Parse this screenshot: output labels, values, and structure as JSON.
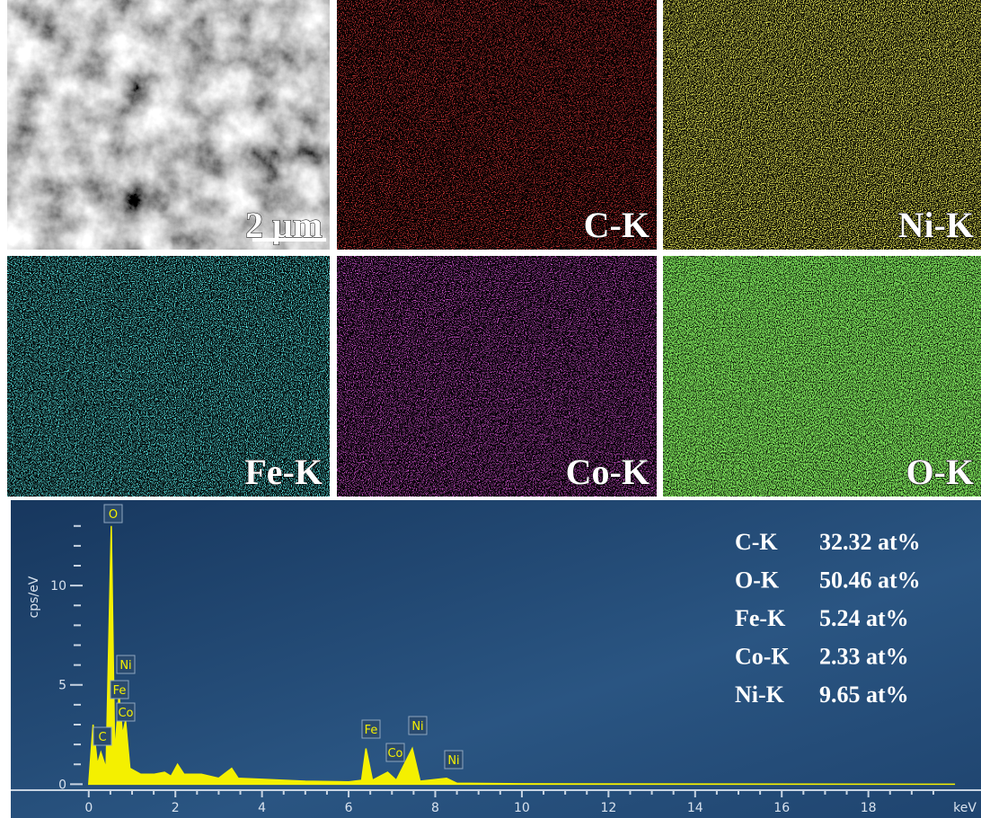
{
  "panels": [
    {
      "label": "2 μm"
    },
    {
      "label": "C-K"
    },
    {
      "label": "Ni-K"
    },
    {
      "label": "Fe-K"
    },
    {
      "label": "Co-K"
    },
    {
      "label": "O-K"
    }
  ],
  "composition": [
    {
      "element": "C-K",
      "amount": "32.32 at%"
    },
    {
      "element": "O-K",
      "amount": "50.46 at%"
    },
    {
      "element": "Fe-K",
      "amount": "5.24 at%"
    },
    {
      "element": "Co-K",
      "amount": "2.33 at%"
    },
    {
      "element": "Ni-K",
      "amount": "9.65 at%"
    }
  ],
  "chart_data": {
    "type": "area",
    "x_label": "keV",
    "y_label": "cps/eV",
    "color": "#f4f000",
    "x": [
      0,
      0.1,
      0.2,
      0.28,
      0.4,
      0.52,
      0.6,
      0.7,
      0.78,
      0.85,
      0.95,
      1.2,
      1.5,
      1.75,
      1.9,
      2.05,
      2.2,
      2.6,
      3.0,
      3.3,
      3.45,
      4,
      5,
      6,
      6.3,
      6.4,
      6.55,
      6.9,
      7.1,
      7.47,
      7.65,
      8.26,
      8.5,
      10,
      20
    ],
    "values": [
      0,
      3.0,
      1.0,
      1.6,
      0.8,
      13,
      1.5,
      4.5,
      2.5,
      3.2,
      0.8,
      0.5,
      0.5,
      0.6,
      0.4,
      1.0,
      0.5,
      0.5,
      0.3,
      0.8,
      0.3,
      0.25,
      0.15,
      0.12,
      0.2,
      1.8,
      0.2,
      0.6,
      0.2,
      1.8,
      0.15,
      0.3,
      0.05,
      0.02,
      0
    ],
    "xlim": [
      -1.8,
      20.6
    ],
    "ylim": [
      -0.3,
      14.3
    ],
    "xticks": [
      0,
      2,
      4,
      6,
      8,
      10,
      12,
      14,
      16,
      18
    ],
    "yticks": [
      0,
      5,
      10
    ],
    "x_minor_ticks": [
      0.5,
      1,
      1.5,
      2.5,
      3,
      3.5,
      4.5,
      5,
      5.5,
      6.5,
      7,
      7.5,
      8.5,
      9,
      9.5,
      10.5,
      11,
      11.5,
      12.5,
      13,
      13.5,
      14.5,
      15,
      15.5,
      16.5,
      17,
      17.5,
      18.5,
      19,
      19.5
    ],
    "y_minor_ticks": [
      1,
      2,
      3,
      4,
      6,
      7,
      8,
      9,
      11,
      12,
      13
    ],
    "peak_labels": [
      "O",
      "Ni",
      "Fe",
      "Co",
      "C",
      "Fe",
      "Co",
      "Ni",
      "Ni"
    ]
  }
}
